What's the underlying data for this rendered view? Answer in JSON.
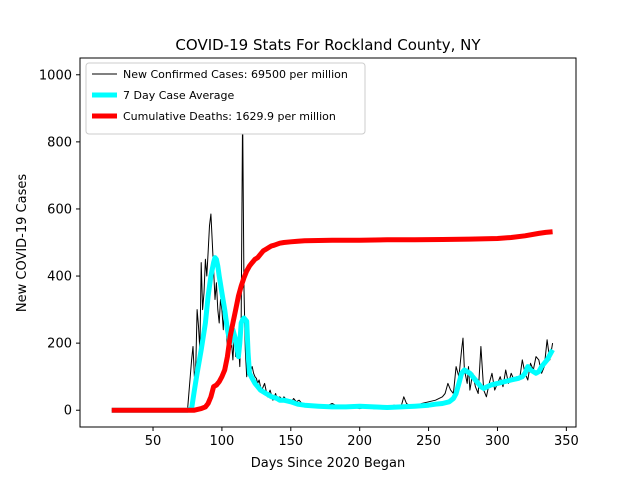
{
  "chart_data": {
    "type": "line",
    "title": "COVID-19 Stats For Rockland County, NY",
    "xlabel": "Days Since 2020 Began",
    "ylabel": "New COVID-19 Cases",
    "xlim": [
      -3,
      357
    ],
    "ylim": [
      -50,
      1050
    ],
    "xticks": [
      50,
      100,
      150,
      200,
      250,
      300,
      350
    ],
    "yticks": [
      0,
      200,
      400,
      600,
      800,
      1000
    ],
    "grid": false,
    "legend_position": "top-left",
    "series": [
      {
        "name": "New Confirmed Cases: 69500 per million",
        "color": "#000000",
        "style": "thin",
        "x": [
          20,
          40,
          60,
          75,
          78,
          79,
          80,
          81,
          82,
          83,
          84,
          85,
          86,
          87,
          88,
          89,
          90,
          91,
          92,
          93,
          94,
          95,
          96,
          97,
          98,
          99,
          100,
          101,
          102,
          103,
          104,
          105,
          106,
          107,
          108,
          109,
          110,
          111,
          112,
          113,
          114,
          115,
          116,
          117,
          118,
          119,
          120,
          121,
          122,
          123,
          124,
          125,
          126,
          127,
          128,
          129,
          130,
          131,
          132,
          133,
          134,
          135,
          136,
          137,
          138,
          139,
          140,
          141,
          142,
          143,
          144,
          145,
          146,
          147,
          148,
          149,
          150,
          152,
          154,
          156,
          158,
          160,
          165,
          170,
          175,
          180,
          185,
          190,
          195,
          200,
          205,
          210,
          215,
          220,
          225,
          230,
          232,
          234,
          236,
          240,
          245,
          250,
          255,
          260,
          262,
          264,
          266,
          268,
          270,
          272,
          274,
          275,
          276,
          277,
          278,
          279,
          280,
          282,
          284,
          286,
          288,
          290,
          292,
          294,
          296,
          298,
          300,
          302,
          304,
          306,
          308,
          310,
          312,
          314,
          316,
          318,
          320,
          322,
          324,
          326,
          328,
          330,
          332,
          334,
          336,
          338,
          340
        ],
        "y": [
          0,
          0,
          0,
          0,
          150,
          190,
          100,
          120,
          300,
          250,
          180,
          440,
          300,
          350,
          450,
          400,
          470,
          550,
          585,
          500,
          420,
          330,
          380,
          300,
          260,
          330,
          300,
          240,
          330,
          250,
          190,
          210,
          180,
          200,
          150,
          230,
          160,
          170,
          200,
          130,
          280,
          890,
          360,
          180,
          100,
          160,
          170,
          120,
          130,
          110,
          100,
          95,
          80,
          90,
          70,
          60,
          70,
          80,
          60,
          40,
          50,
          60,
          45,
          30,
          40,
          50,
          35,
          30,
          40,
          35,
          25,
          40,
          35,
          30,
          30,
          25,
          20,
          35,
          25,
          30,
          20,
          15,
          15,
          10,
          10,
          20,
          10,
          15,
          10,
          5,
          10,
          5,
          5,
          10,
          15,
          10,
          40,
          20,
          15,
          10,
          20,
          25,
          30,
          40,
          50,
          80,
          60,
          50,
          130,
          100,
          180,
          215,
          120,
          100,
          80,
          130,
          60,
          110,
          70,
          50,
          190,
          60,
          40,
          80,
          110,
          60,
          80,
          100,
          70,
          120,
          80,
          110,
          90,
          100,
          90,
          150,
          110,
          90,
          140,
          120,
          160,
          150,
          110,
          130,
          210,
          150,
          200
        ]
      },
      {
        "name": "7 Day Case Average",
        "color": "#00ffff",
        "style": "thick",
        "x": [
          20,
          60,
          75,
          78,
          80,
          82,
          85,
          88,
          90,
          92,
          94,
          95,
          96,
          97,
          98,
          100,
          102,
          104,
          106,
          108,
          110,
          112,
          113,
          114,
          115,
          116,
          117,
          118,
          119,
          120,
          122,
          124,
          126,
          128,
          130,
          132,
          134,
          136,
          138,
          140,
          142,
          145,
          150,
          155,
          160,
          170,
          180,
          190,
          200,
          210,
          220,
          230,
          240,
          250,
          255,
          260,
          265,
          268,
          270,
          272,
          274,
          276,
          278,
          280,
          282,
          284,
          286,
          288,
          290,
          295,
          300,
          305,
          310,
          315,
          318,
          320,
          322,
          324,
          326,
          328,
          330,
          332,
          334,
          336,
          338,
          340
        ],
        "y": [
          0,
          0,
          0,
          5,
          60,
          110,
          180,
          260,
          340,
          400,
          440,
          455,
          450,
          430,
          400,
          350,
          300,
          240,
          200,
          240,
          210,
          160,
          200,
          260,
          270,
          275,
          270,
          265,
          170,
          110,
          95,
          80,
          70,
          60,
          55,
          50,
          45,
          40,
          38,
          35,
          30,
          30,
          25,
          18,
          15,
          12,
          10,
          10,
          12,
          10,
          8,
          10,
          12,
          15,
          18,
          20,
          25,
          35,
          50,
          80,
          110,
          120,
          115,
          110,
          100,
          90,
          80,
          70,
          65,
          75,
          80,
          85,
          90,
          95,
          100,
          110,
          130,
          120,
          115,
          110,
          115,
          130,
          140,
          150,
          165,
          180
        ]
      },
      {
        "name": "Cumulative Deaths: 1629.9 per million",
        "color": "#ff0000",
        "style": "thick",
        "x": [
          20,
          80,
          85,
          88,
          90,
          92,
          94,
          96,
          98,
          100,
          102,
          104,
          106,
          108,
          110,
          112,
          114,
          116,
          118,
          120,
          122,
          124,
          126,
          128,
          130,
          132,
          134,
          136,
          138,
          140,
          142,
          145,
          150,
          155,
          160,
          170,
          180,
          200,
          220,
          240,
          260,
          280,
          300,
          310,
          320,
          330,
          335,
          340
        ],
        "y": [
          0,
          0,
          5,
          10,
          20,
          40,
          70,
          75,
          85,
          100,
          120,
          160,
          220,
          260,
          300,
          340,
          370,
          395,
          415,
          430,
          440,
          450,
          455,
          465,
          475,
          480,
          485,
          490,
          492,
          495,
          498,
          500,
          502,
          504,
          505,
          506,
          507,
          507,
          508,
          508,
          509,
          510,
          512,
          515,
          520,
          527,
          530,
          532
        ]
      }
    ]
  }
}
